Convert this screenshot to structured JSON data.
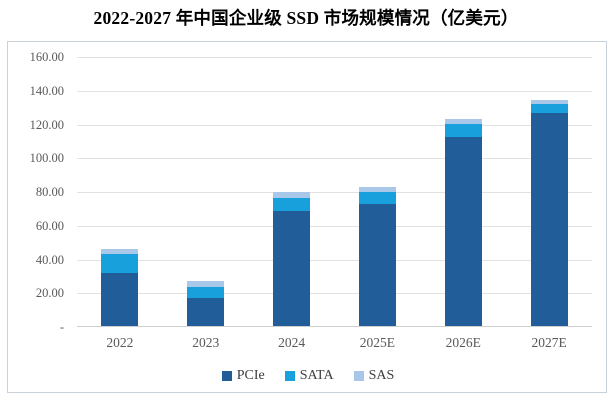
{
  "title": "2022-2027 年中国企业级 SSD 市场规模情况（亿美元）",
  "chart_data": {
    "type": "bar",
    "stacked": true,
    "title": "2022-2027 年中国企业级 SSD 市场规模情况（亿美元）",
    "categories": [
      "2022",
      "2023",
      "2024",
      "2025E",
      "2026E",
      "2027E"
    ],
    "series": [
      {
        "name": "PCIe",
        "color": "#215e99",
        "values": [
          31.7,
          16.8,
          68.1,
          72.3,
          112.0,
          126.2
        ]
      },
      {
        "name": "SATA",
        "color": "#18a0dc",
        "values": [
          10.7,
          6.6,
          7.7,
          7.1,
          7.7,
          5.3
        ]
      },
      {
        "name": "SAS",
        "color": "#a9c8e9",
        "values": [
          3.3,
          3.3,
          3.6,
          3.0,
          3.0,
          2.4
        ]
      }
    ],
    "totals": [
      45.7,
      26.7,
      79.4,
      82.4,
      122.7,
      133.9
    ],
    "xlabel": "",
    "ylabel": "",
    "ylim": [
      0,
      160
    ],
    "ytick_step": 20,
    "ytick_labels": [
      "-",
      "20.00",
      "40.00",
      "60.00",
      "80.00",
      "100.00",
      "120.00",
      "140.00",
      "160.00"
    ],
    "grid": true,
    "legend_position": "bottom"
  },
  "colors": {
    "chart_border": "#c9d2da",
    "gridline": "#e2e2e2",
    "axis_line": "#cfcfcf",
    "tick_text": "#595959",
    "legend_text": "#3d3d3d",
    "title_text": "#000000"
  }
}
